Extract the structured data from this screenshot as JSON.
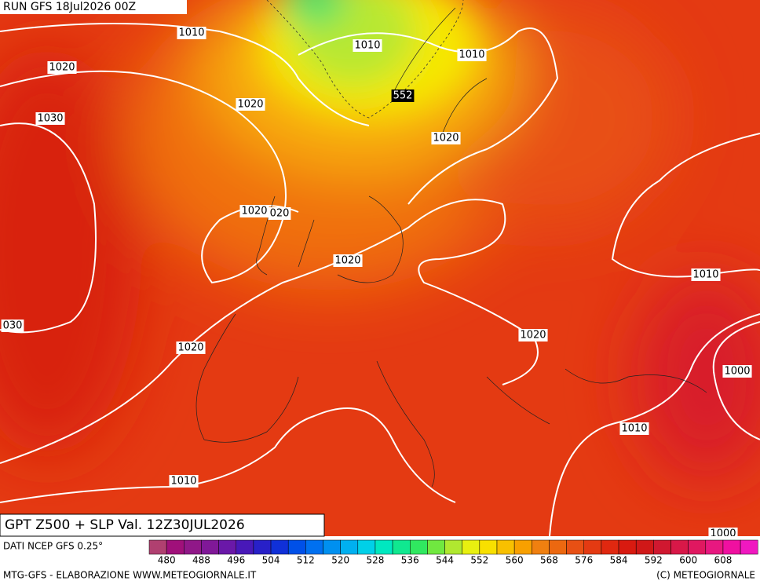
{
  "header": {
    "run": "RUN GFS 18Jul2026 00Z",
    "product": "GPT Z500 + SLP Val. 12Z30JUL2026"
  },
  "contour_labels": [
    "1010",
    "1010",
    "1010",
    "1020",
    "1020",
    "1030",
    "552",
    "1020",
    "1020",
    "020",
    "1020",
    "1010",
    "030",
    "1020",
    "1020",
    "1000",
    "1010",
    "1010",
    "1000"
  ],
  "colorbar": {
    "labels": [
      "480",
      "488",
      "496",
      "504",
      "512",
      "520",
      "528",
      "536",
      "544",
      "552",
      "560",
      "568",
      "576",
      "584",
      "592",
      "600",
      "608"
    ]
  },
  "footer": {
    "source": "DATI NCEP GFS 0.25°",
    "credits": "MTG-GFS - ELABORAZIONE WWW.METEOGIORNALE.IT",
    "copyright": "(C) METEOGIORNALE"
  }
}
